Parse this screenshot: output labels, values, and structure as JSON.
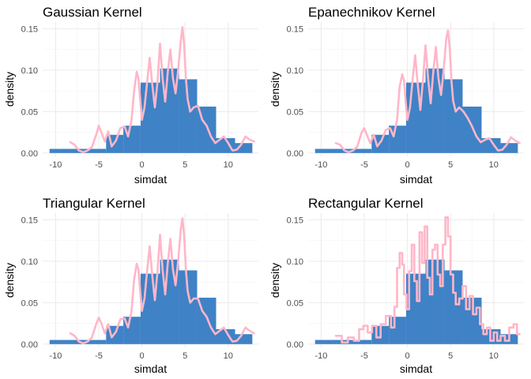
{
  "chart_data": [
    {
      "type": "bar",
      "title": "Gaussian Kernel",
      "xlabel": "simdat",
      "ylabel": "density",
      "xlim": [
        -11.5,
        13.5
      ],
      "ylim": [
        -0.004,
        0.158
      ],
      "xticks": [
        -10,
        -5,
        0,
        5,
        10
      ],
      "xtick_labels": [
        "-10",
        "-5",
        "0",
        "5",
        "10"
      ],
      "yticks": [
        0.0,
        0.05,
        0.1,
        0.15
      ],
      "ytick_labels": [
        "0.00",
        "0.05",
        "0.10",
        "0.15"
      ],
      "histogram": {
        "bin_edges": [
          -10.7,
          -6.05,
          -4.15,
          -2.15,
          -0.15,
          2.1,
          4.3,
          6.4,
          8.6,
          10.8,
          12.8
        ],
        "values": [
          0.005,
          0.005,
          0.022,
          0.033,
          0.085,
          0.102,
          0.089,
          0.056,
          0.018,
          0.012
        ],
        "color": "#3f82c6"
      },
      "density_curve": {
        "color": "#ffb6c8",
        "x": [
          -8.3,
          -7.8,
          -7.3,
          -6.8,
          -6.3,
          -5.8,
          -5.3,
          -5.0,
          -4.7,
          -4.3,
          -3.9,
          -3.5,
          -3.0,
          -2.5,
          -2.0,
          -1.6,
          -1.2,
          -0.9,
          -0.6,
          -0.4,
          -0.2,
          0.0,
          0.3,
          0.6,
          0.9,
          1.2,
          1.5,
          1.8,
          2.1,
          2.4,
          2.7,
          3.0,
          3.3,
          3.6,
          3.9,
          4.2,
          4.5,
          4.7,
          4.9,
          5.1,
          5.3,
          5.6,
          6.0,
          6.5,
          7.0,
          7.5,
          8.0,
          8.5,
          9.0,
          9.5,
          10.0,
          10.5,
          11.0,
          11.5,
          12.0,
          12.5,
          13.0
        ],
        "y": [
          0.013,
          0.01,
          0.003,
          0.001,
          0.003,
          0.007,
          0.022,
          0.033,
          0.025,
          0.014,
          0.026,
          0.008,
          0.015,
          0.03,
          0.032,
          0.02,
          0.04,
          0.075,
          0.098,
          0.09,
          0.065,
          0.04,
          0.055,
          0.085,
          0.115,
          0.083,
          0.055,
          0.085,
          0.132,
          0.09,
          0.062,
          0.098,
          0.125,
          0.09,
          0.072,
          0.1,
          0.135,
          0.152,
          0.13,
          0.09,
          0.065,
          0.05,
          0.055,
          0.057,
          0.04,
          0.033,
          0.02,
          0.012,
          0.016,
          0.02,
          0.012,
          0.003,
          0.004,
          0.01,
          0.02,
          0.016,
          0.014
        ]
      }
    },
    {
      "type": "bar",
      "title": "Epanechnikov Kernel",
      "xlabel": "simdat",
      "ylabel": "density",
      "xlim": [
        -11.5,
        13.5
      ],
      "ylim": [
        -0.004,
        0.158
      ],
      "xticks": [
        -10,
        -5,
        0,
        5,
        10
      ],
      "xtick_labels": [
        "-10",
        "-5",
        "0",
        "5",
        "10"
      ],
      "yticks": [
        0.0,
        0.05,
        0.1,
        0.15
      ],
      "ytick_labels": [
        "0.00",
        "0.05",
        "0.10",
        "0.15"
      ],
      "histogram": {
        "bin_edges": [
          -10.7,
          -6.05,
          -4.15,
          -2.15,
          -0.15,
          2.1,
          4.3,
          6.4,
          8.6,
          10.8,
          12.8
        ],
        "values": [
          0.005,
          0.005,
          0.022,
          0.033,
          0.085,
          0.102,
          0.089,
          0.056,
          0.018,
          0.012
        ],
        "color": "#3f82c6"
      },
      "density_curve": {
        "color": "#ffb6c8",
        "x": [
          -8.3,
          -7.8,
          -7.3,
          -6.8,
          -6.3,
          -5.8,
          -5.3,
          -5.0,
          -4.7,
          -4.3,
          -3.9,
          -3.5,
          -3.0,
          -2.5,
          -2.0,
          -1.6,
          -1.2,
          -0.9,
          -0.6,
          -0.4,
          -0.2,
          0.0,
          0.3,
          0.6,
          0.9,
          1.2,
          1.5,
          1.8,
          2.1,
          2.4,
          2.7,
          3.0,
          3.3,
          3.6,
          3.9,
          4.2,
          4.5,
          4.7,
          4.9,
          5.1,
          5.3,
          5.6,
          6.0,
          6.5,
          7.0,
          7.5,
          8.0,
          8.5,
          9.0,
          9.5,
          10.0,
          10.5,
          11.0,
          11.5,
          12.0,
          12.5,
          13.0
        ],
        "y": [
          0.012,
          0.01,
          0.003,
          0.001,
          0.003,
          0.008,
          0.025,
          0.03,
          0.022,
          0.012,
          0.022,
          0.008,
          0.015,
          0.028,
          0.03,
          0.02,
          0.04,
          0.08,
          0.095,
          0.088,
          0.062,
          0.04,
          0.055,
          0.088,
          0.118,
          0.083,
          0.052,
          0.088,
          0.13,
          0.09,
          0.06,
          0.098,
          0.128,
          0.09,
          0.07,
          0.1,
          0.138,
          0.148,
          0.128,
          0.088,
          0.063,
          0.05,
          0.055,
          0.05,
          0.042,
          0.032,
          0.02,
          0.013,
          0.016,
          0.018,
          0.01,
          0.003,
          0.004,
          0.01,
          0.019,
          0.015,
          0.012
        ]
      }
    },
    {
      "type": "bar",
      "title": "Triangular Kernel",
      "xlabel": "simdat",
      "ylabel": "density",
      "xlim": [
        -11.5,
        13.5
      ],
      "ylim": [
        -0.004,
        0.158
      ],
      "xticks": [
        -10,
        -5,
        0,
        5,
        10
      ],
      "xtick_labels": [
        "-10",
        "-5",
        "0",
        "5",
        "10"
      ],
      "yticks": [
        0.0,
        0.05,
        0.1,
        0.15
      ],
      "ytick_labels": [
        "0.00",
        "0.05",
        "0.10",
        "0.15"
      ],
      "histogram": {
        "bin_edges": [
          -10.7,
          -6.05,
          -4.15,
          -2.15,
          -0.15,
          2.1,
          4.3,
          6.4,
          8.6,
          10.8,
          12.8
        ],
        "values": [
          0.005,
          0.005,
          0.022,
          0.033,
          0.085,
          0.102,
          0.089,
          0.056,
          0.018,
          0.012
        ],
        "color": "#3f82c6"
      },
      "density_curve": {
        "color": "#ffb6c8",
        "x": [
          -8.3,
          -7.8,
          -7.3,
          -6.8,
          -6.3,
          -5.8,
          -5.3,
          -5.0,
          -4.7,
          -4.3,
          -3.9,
          -3.5,
          -3.0,
          -2.5,
          -2.0,
          -1.6,
          -1.2,
          -0.9,
          -0.6,
          -0.4,
          -0.2,
          0.0,
          0.3,
          0.6,
          0.9,
          1.2,
          1.5,
          1.8,
          2.1,
          2.4,
          2.7,
          3.0,
          3.3,
          3.6,
          3.9,
          4.2,
          4.5,
          4.7,
          4.9,
          5.1,
          5.3,
          5.6,
          6.0,
          6.5,
          7.0,
          7.5,
          8.0,
          8.5,
          9.0,
          9.5,
          10.0,
          10.5,
          11.0,
          11.5,
          12.0,
          12.5,
          13.0
        ],
        "y": [
          0.013,
          0.01,
          0.003,
          0.001,
          0.003,
          0.008,
          0.024,
          0.032,
          0.025,
          0.013,
          0.024,
          0.008,
          0.015,
          0.03,
          0.031,
          0.02,
          0.04,
          0.078,
          0.097,
          0.09,
          0.064,
          0.04,
          0.055,
          0.088,
          0.118,
          0.083,
          0.053,
          0.087,
          0.132,
          0.09,
          0.06,
          0.098,
          0.127,
          0.09,
          0.071,
          0.1,
          0.138,
          0.152,
          0.13,
          0.09,
          0.064,
          0.05,
          0.055,
          0.055,
          0.04,
          0.033,
          0.02,
          0.012,
          0.016,
          0.02,
          0.011,
          0.003,
          0.004,
          0.01,
          0.02,
          0.016,
          0.013
        ]
      }
    },
    {
      "type": "bar",
      "title": "Rectangular Kernel",
      "xlabel": "simdat",
      "ylabel": "density",
      "xlim": [
        -11.5,
        13.5
      ],
      "ylim": [
        -0.004,
        0.158
      ],
      "xticks": [
        -10,
        -5,
        0,
        5,
        10
      ],
      "xtick_labels": [
        "-10",
        "-5",
        "0",
        "5",
        "10"
      ],
      "yticks": [
        0.0,
        0.05,
        0.1,
        0.15
      ],
      "ytick_labels": [
        "0.00",
        "0.05",
        "0.10",
        "0.15"
      ],
      "histogram": {
        "bin_edges": [
          -10.7,
          -6.05,
          -4.15,
          -2.15,
          -0.15,
          2.1,
          4.3,
          6.4,
          8.6,
          10.8,
          12.8
        ],
        "values": [
          0.005,
          0.005,
          0.022,
          0.033,
          0.085,
          0.102,
          0.089,
          0.056,
          0.018,
          0.012
        ],
        "color": "#3f82c6"
      },
      "density_curve": {
        "color": "#ffb6c8",
        "x": [
          -8.3,
          -7.6,
          -7.6,
          -6.9,
          -6.9,
          -6.2,
          -6.2,
          -5.6,
          -5.6,
          -5.1,
          -5.1,
          -4.6,
          -4.6,
          -4.1,
          -4.1,
          -3.6,
          -3.6,
          -3.1,
          -3.1,
          -2.5,
          -2.5,
          -1.9,
          -1.9,
          -1.5,
          -1.5,
          -1.2,
          -1.2,
          -0.9,
          -0.9,
          -0.6,
          -0.6,
          -0.4,
          -0.4,
          -0.1,
          -0.1,
          0.2,
          0.2,
          0.5,
          0.5,
          0.8,
          0.8,
          1.1,
          1.1,
          1.4,
          1.4,
          1.7,
          1.7,
          2.0,
          2.0,
          2.3,
          2.3,
          2.6,
          2.6,
          2.9,
          2.9,
          3.2,
          3.2,
          3.5,
          3.5,
          3.8,
          3.8,
          4.1,
          4.1,
          4.4,
          4.4,
          4.7,
          4.7,
          5.0,
          5.0,
          5.3,
          5.3,
          5.6,
          5.6,
          6.0,
          6.0,
          6.4,
          6.4,
          6.8,
          6.8,
          7.2,
          7.2,
          7.6,
          7.6,
          8.0,
          8.0,
          8.4,
          8.4,
          8.8,
          8.8,
          9.2,
          9.2,
          9.6,
          9.6,
          10.0,
          10.0,
          10.4,
          10.4,
          10.8,
          10.8,
          11.3,
          11.3,
          11.8,
          11.8,
          12.3,
          12.3,
          12.7,
          12.7,
          13.0
        ],
        "y": [
          0.01,
          0.01,
          0.002,
          0.002,
          0.008,
          0.008,
          0.004,
          0.004,
          0.018,
          0.018,
          0.022,
          0.022,
          0.014,
          0.014,
          0.022,
          0.022,
          0.008,
          0.008,
          0.024,
          0.024,
          0.034,
          0.034,
          0.02,
          0.02,
          0.045,
          0.045,
          0.092,
          0.092,
          0.11,
          0.11,
          0.096,
          0.096,
          0.06,
          0.06,
          0.042,
          0.042,
          0.088,
          0.088,
          0.12,
          0.12,
          0.076,
          0.076,
          0.052,
          0.052,
          0.135,
          0.135,
          0.098,
          0.098,
          0.142,
          0.142,
          0.08,
          0.08,
          0.06,
          0.06,
          0.114,
          0.114,
          0.12,
          0.12,
          0.084,
          0.084,
          0.07,
          0.07,
          0.12,
          0.12,
          0.153,
          0.153,
          0.13,
          0.13,
          0.084,
          0.084,
          0.062,
          0.062,
          0.048,
          0.048,
          0.055,
          0.055,
          0.07,
          0.07,
          0.042,
          0.042,
          0.058,
          0.058,
          0.036,
          0.036,
          0.044,
          0.044,
          0.024,
          0.024,
          0.012,
          0.012,
          0.02,
          0.02,
          0.004,
          0.004,
          0.014,
          0.014,
          0.004,
          0.004,
          0.01,
          0.01,
          0.004,
          0.004,
          0.02,
          0.02,
          0.024,
          0.024,
          0.012,
          0.012
        ]
      }
    }
  ]
}
